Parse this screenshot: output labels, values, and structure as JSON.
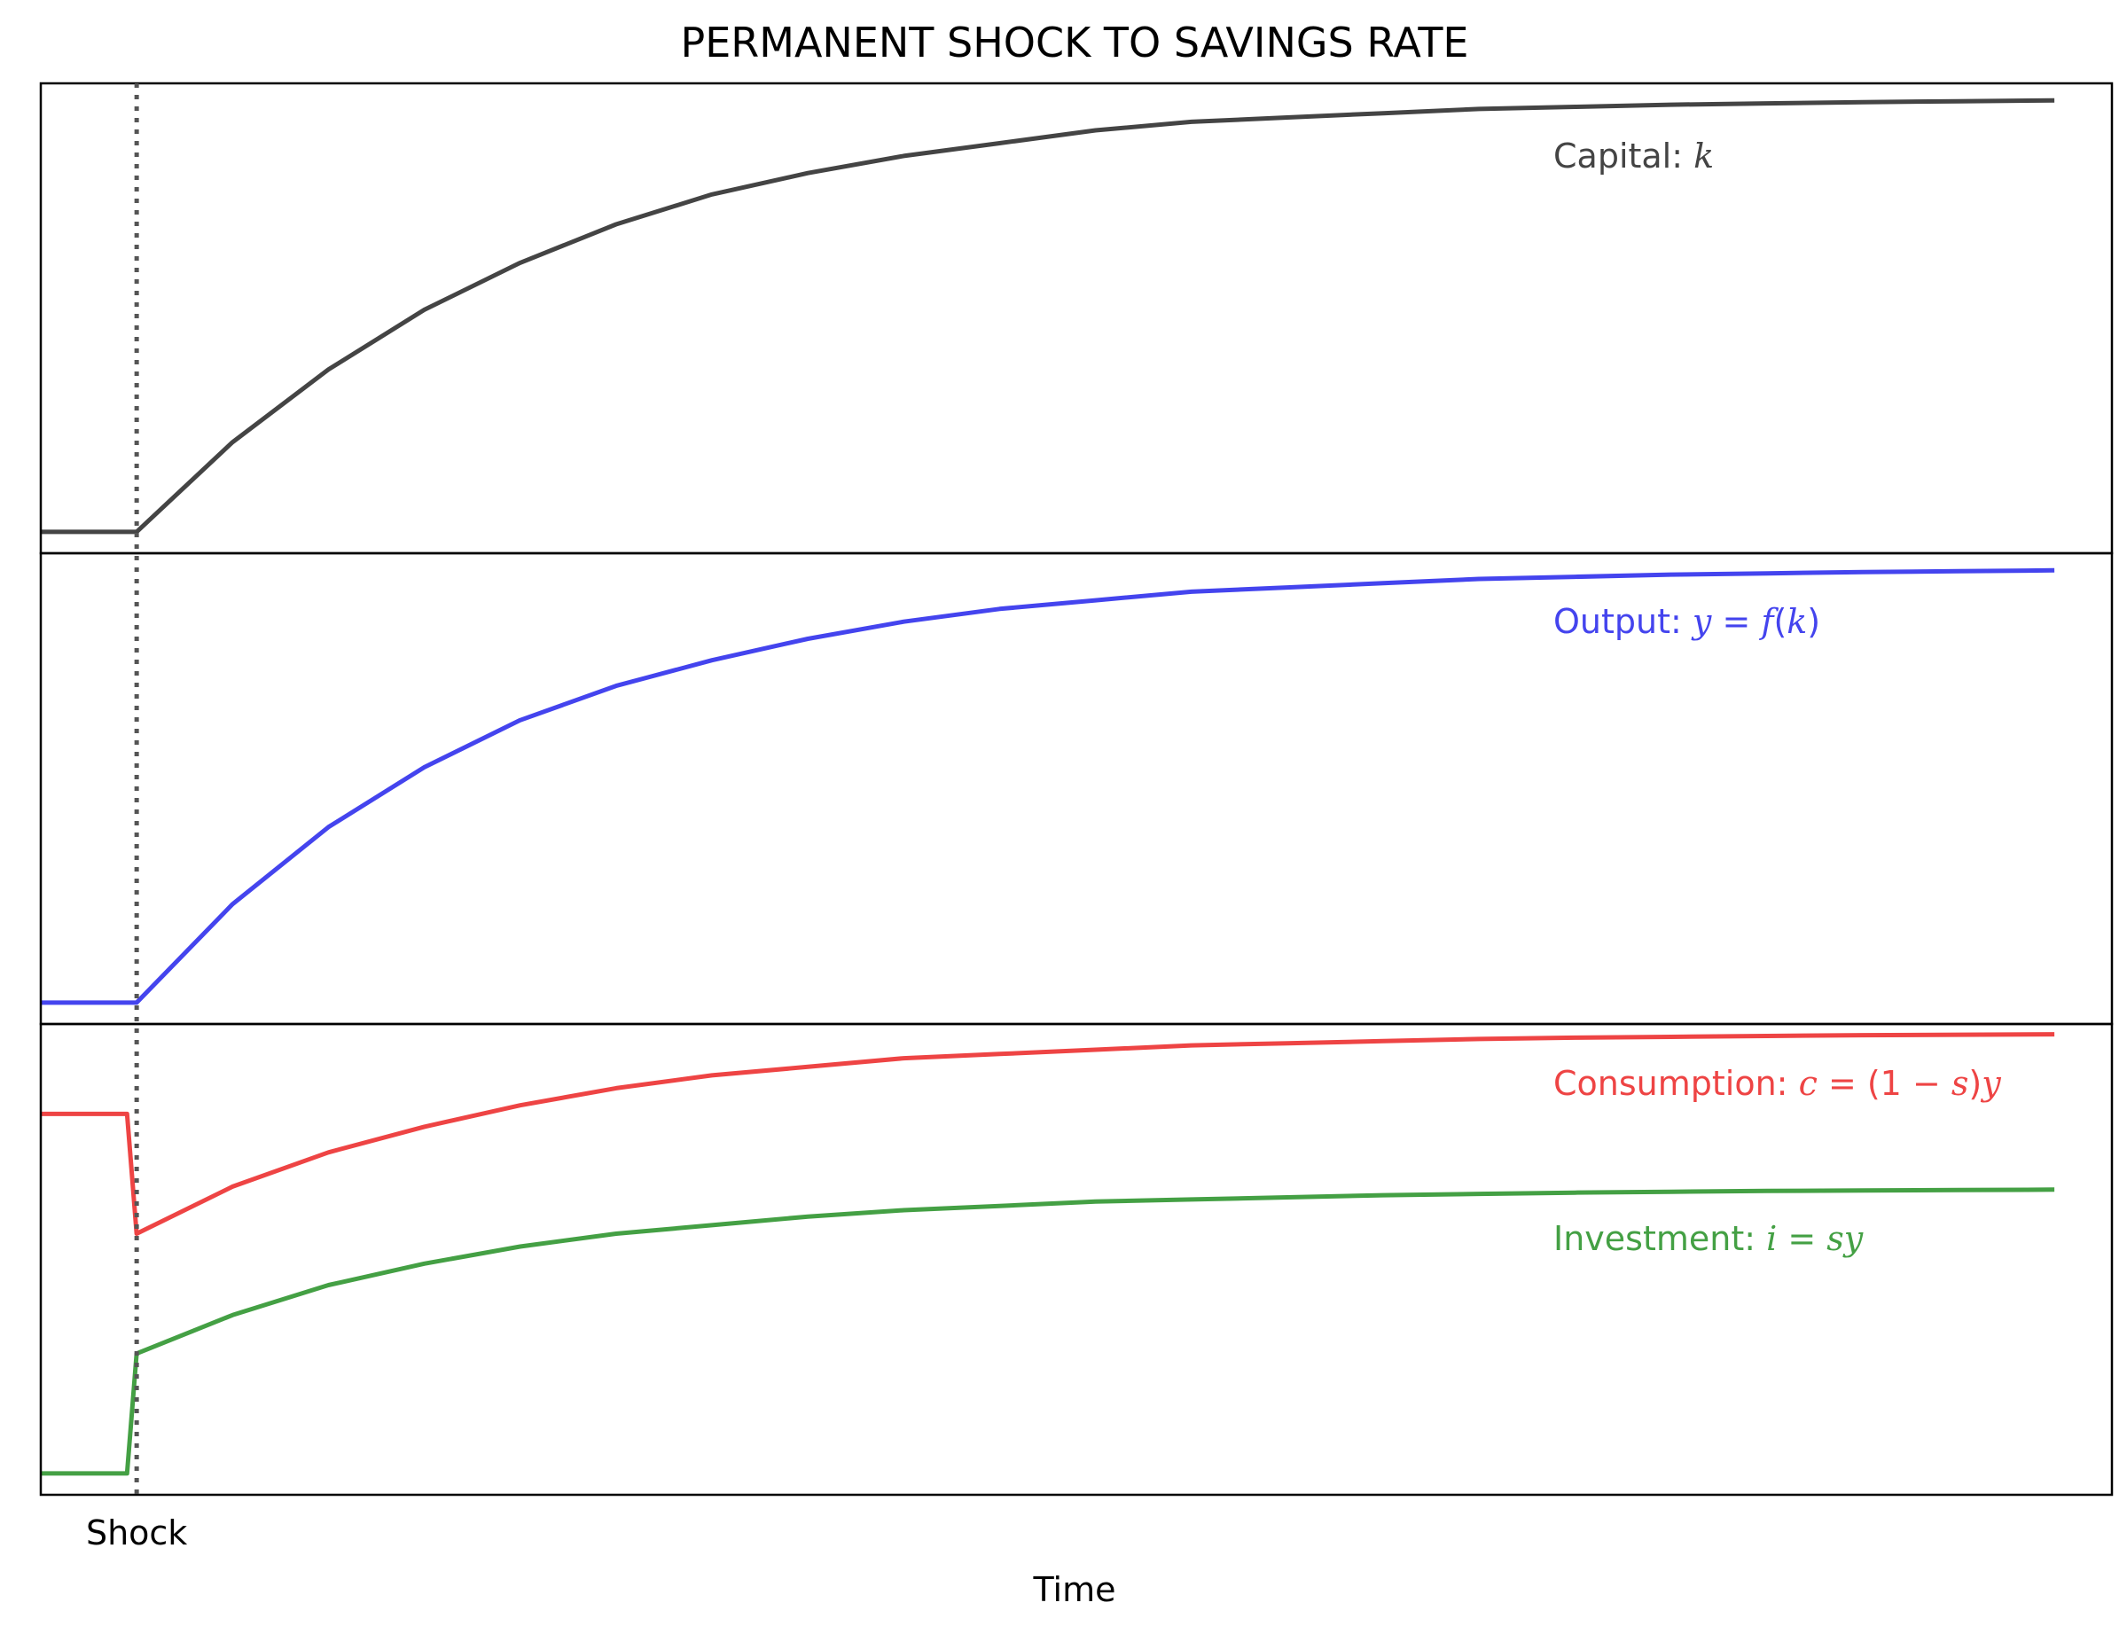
{
  "chart_data": {
    "type": "line",
    "title": "PERMANENT SHOCK TO SAVINGS RATE",
    "xlabel": "Time",
    "x_ticks": [
      {
        "value": 0,
        "label": "Shock"
      }
    ],
    "xlim": [
      -1,
      20.6
    ],
    "shock_x": 0,
    "grid": false,
    "panels": [
      {
        "ylim": [
          0,
          1.1
        ],
        "series": [
          {
            "name": "Capital: k",
            "color": "#444444",
            "label_parts": [
              {
                "t": "Capital: ",
                "m": false
              },
              {
                "t": "k",
                "m": true
              }
            ],
            "x": [
              -1,
              0,
              1,
              2,
              3,
              4,
              5,
              6,
              7,
              8,
              9,
              10,
              11,
              12,
              13,
              14,
              15,
              16,
              17,
              18,
              19,
              20
            ],
            "y": [
              0.05,
              0.05,
              0.26,
              0.43,
              0.57,
              0.68,
              0.77,
              0.84,
              0.89,
              0.93,
              0.96,
              0.99,
              1.01,
              1.02,
              1.03,
              1.04,
              1.045,
              1.05,
              1.053,
              1.056,
              1.058,
              1.06
            ]
          }
        ]
      },
      {
        "ylim": [
          0,
          1.1
        ],
        "series": [
          {
            "name": "Output: y = f(k)",
            "color": "#4444ee",
            "label_parts": [
              {
                "t": "Output: ",
                "m": false
              },
              {
                "t": "y",
                "m": true
              },
              {
                "t": " = ",
                "m": false
              },
              {
                "t": "f",
                "m": true
              },
              {
                "t": "(",
                "m": false
              },
              {
                "t": "k",
                "m": true
              },
              {
                "t": ")",
                "m": false
              }
            ],
            "x": [
              -1,
              0,
              1,
              2,
              3,
              4,
              5,
              6,
              7,
              8,
              9,
              10,
              11,
              12,
              13,
              14,
              15,
              16,
              17,
              18,
              19,
              20
            ],
            "y": [
              0.05,
              0.05,
              0.28,
              0.46,
              0.6,
              0.71,
              0.79,
              0.85,
              0.9,
              0.94,
              0.97,
              0.99,
              1.01,
              1.02,
              1.03,
              1.04,
              1.045,
              1.05,
              1.053,
              1.056,
              1.058,
              1.06
            ]
          }
        ]
      },
      {
        "ylim": [
          0,
          1.1
        ],
        "series": [
          {
            "name": "Consumption: c = (1 − s)y",
            "color": "#ee4444",
            "label_parts": [
              {
                "t": "Consumption: ",
                "m": false
              },
              {
                "t": "c",
                "m": true
              },
              {
                "t": " = (1 − ",
                "m": false
              },
              {
                "t": "s",
                "m": true
              },
              {
                "t": ")",
                "m": false
              },
              {
                "t": "y",
                "m": true
              }
            ],
            "x": [
              -1,
              -0.1,
              0,
              1,
              2,
              3,
              4,
              5,
              6,
              7,
              8,
              9,
              10,
              11,
              12,
              13,
              14,
              15,
              16,
              17,
              18,
              19,
              20
            ],
            "y": [
              0.89,
              0.89,
              0.61,
              0.72,
              0.8,
              0.86,
              0.91,
              0.95,
              0.98,
              1.0,
              1.02,
              1.03,
              1.04,
              1.05,
              1.055,
              1.06,
              1.065,
              1.068,
              1.07,
              1.072,
              1.074,
              1.075,
              1.076
            ]
          },
          {
            "name": "Investment: i = sy",
            "color": "#44a044",
            "label_parts": [
              {
                "t": "Investment: ",
                "m": false
              },
              {
                "t": "i",
                "m": true
              },
              {
                "t": " = ",
                "m": false
              },
              {
                "t": "sy",
                "m": true
              }
            ],
            "x": [
              -1,
              -0.1,
              0,
              1,
              2,
              3,
              4,
              5,
              6,
              7,
              8,
              9,
              10,
              11,
              12,
              13,
              14,
              15,
              16,
              17,
              18,
              19,
              20
            ],
            "y": [
              0.05,
              0.05,
              0.33,
              0.42,
              0.49,
              0.54,
              0.58,
              0.61,
              0.63,
              0.65,
              0.665,
              0.675,
              0.685,
              0.69,
              0.695,
              0.7,
              0.703,
              0.706,
              0.708,
              0.71,
              0.711,
              0.712,
              0.713
            ]
          }
        ]
      }
    ]
  }
}
